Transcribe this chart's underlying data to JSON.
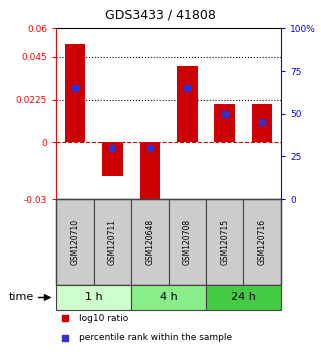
{
  "title": "GDS3433 / 41808",
  "samples": [
    "GSM120710",
    "GSM120711",
    "GSM120648",
    "GSM120708",
    "GSM120715",
    "GSM120716"
  ],
  "log10_ratio": [
    0.052,
    -0.018,
    -0.036,
    0.04,
    0.02,
    0.02
  ],
  "percentile_rank": [
    65,
    30,
    30,
    65,
    50,
    45
  ],
  "ylim_left": [
    -0.03,
    0.06
  ],
  "ylim_right": [
    0,
    100
  ],
  "yticks_left": [
    -0.03,
    0,
    0.0225,
    0.045,
    0.06
  ],
  "yticks_right": [
    0,
    25,
    50,
    75,
    100
  ],
  "ytick_labels_left": [
    "-0.03",
    "0",
    "0.0225",
    "0.045",
    "0.06"
  ],
  "ytick_labels_right": [
    "0",
    "25",
    "50",
    "75",
    "100%"
  ],
  "hlines": [
    0.045,
    0.0225
  ],
  "bar_color": "#cc0000",
  "blue_color": "#3333cc",
  "zero_line_color": "#cc0000",
  "groups": [
    {
      "label": "1 h",
      "samples": [
        0,
        1
      ],
      "color": "#ccffcc"
    },
    {
      "label": "4 h",
      "samples": [
        2,
        3
      ],
      "color": "#88ee88"
    },
    {
      "label": "24 h",
      "samples": [
        4,
        5
      ],
      "color": "#44cc44"
    }
  ],
  "bar_width": 0.55,
  "blue_square_size": 18,
  "legend_items": [
    {
      "color": "#cc0000",
      "label": "log10 ratio"
    },
    {
      "color": "#3333cc",
      "label": "percentile rank within the sample"
    }
  ],
  "xlabel_group": "time",
  "sample_box_color": "#cccccc",
  "sample_box_edge": "#444444"
}
